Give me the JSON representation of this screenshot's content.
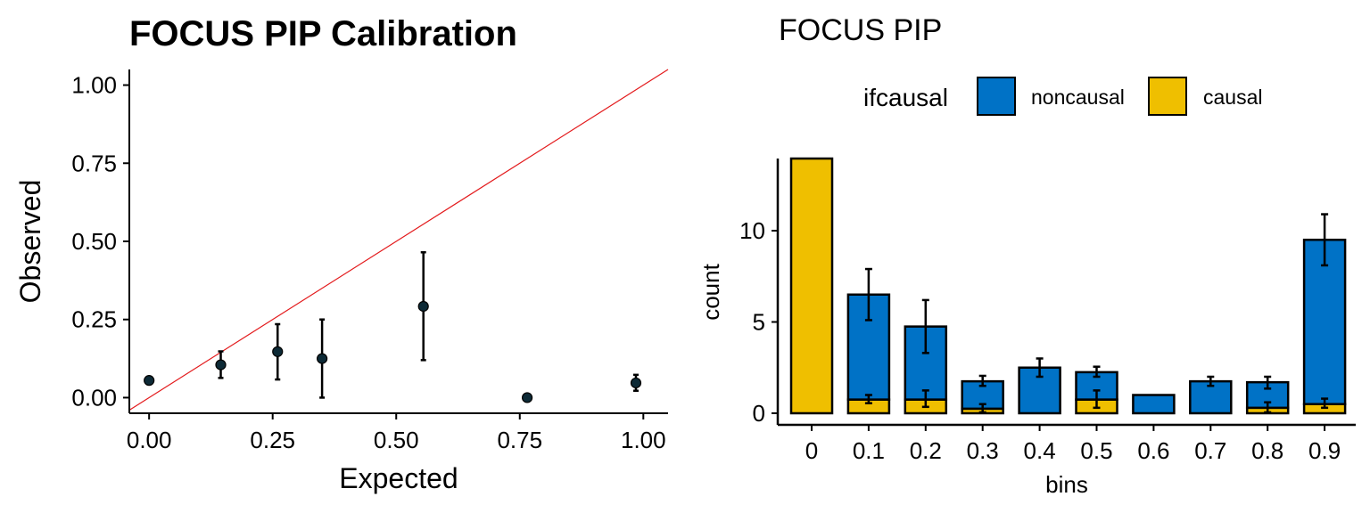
{
  "chart_data": [
    {
      "type": "scatter",
      "title": "FOCUS PIP Calibration",
      "xlabel": "Expected",
      "ylabel": "Observed",
      "xlim": [
        -0.04,
        1.05
      ],
      "ylim": [
        -0.05,
        1.05
      ],
      "xticks": [
        "0.00",
        "0.25",
        "0.50",
        "0.75",
        "1.00"
      ],
      "yticks": [
        "0.00",
        "0.25",
        "0.50",
        "0.75",
        "1.00"
      ],
      "reference_line": "y = x",
      "reference_color": "#e31a1c",
      "point_color": "#0d2a36",
      "points": [
        {
          "x": 0.0,
          "y": 0.055,
          "lo": null,
          "hi": null
        },
        {
          "x": 0.145,
          "y": 0.105,
          "lo": 0.063,
          "hi": 0.148
        },
        {
          "x": 0.26,
          "y": 0.147,
          "lo": 0.058,
          "hi": 0.235
        },
        {
          "x": 0.35,
          "y": 0.125,
          "lo": 0.0,
          "hi": 0.25
        },
        {
          "x": 0.555,
          "y": 0.292,
          "lo": 0.12,
          "hi": 0.465
        },
        {
          "x": 0.765,
          "y": 0.0,
          "lo": null,
          "hi": null
        },
        {
          "x": 0.985,
          "y": 0.047,
          "lo": 0.022,
          "hi": 0.073
        }
      ],
      "grid": false
    },
    {
      "type": "bar",
      "stacked": true,
      "title": "FOCUS PIP",
      "xlabel": "bins",
      "ylabel": "count",
      "categories": [
        "0",
        "0.1",
        "0.2",
        "0.3",
        "0.4",
        "0.5",
        "0.6",
        "0.7",
        "0.8",
        "0.9"
      ],
      "ylim": [
        0,
        14
      ],
      "yticks": [
        "0",
        "5",
        "10"
      ],
      "legend": {
        "title": "ifcausal",
        "placement": "top",
        "entries": [
          {
            "label": "noncausal",
            "color": "#0072c6"
          },
          {
            "label": "causal",
            "color": "#efbf00"
          }
        ]
      },
      "series": [
        {
          "name": "causal",
          "values": [
            14,
            0.75,
            0.75,
            0.25,
            0,
            0.75,
            0,
            0,
            0.3,
            0.5
          ],
          "err_lo": [
            null,
            0.55,
            0.35,
            0.05,
            null,
            0.3,
            null,
            null,
            0.05,
            0.3
          ],
          "err_hi": [
            null,
            1.0,
            1.25,
            0.5,
            null,
            1.25,
            null,
            null,
            0.6,
            0.8
          ]
        },
        {
          "name": "noncausal",
          "values": [
            0,
            5.75,
            4.0,
            1.5,
            2.5,
            1.5,
            1.0,
            1.75,
            1.4,
            9.0
          ],
          "err_lo": [
            null,
            5.1,
            3.3,
            1.5,
            2.0,
            2.0,
            null,
            1.5,
            1.35,
            8.1
          ],
          "err_hi": [
            null,
            7.9,
            6.2,
            2.05,
            3.0,
            2.55,
            null,
            2.0,
            2.0,
            10.9
          ]
        }
      ],
      "grid": false
    }
  ]
}
